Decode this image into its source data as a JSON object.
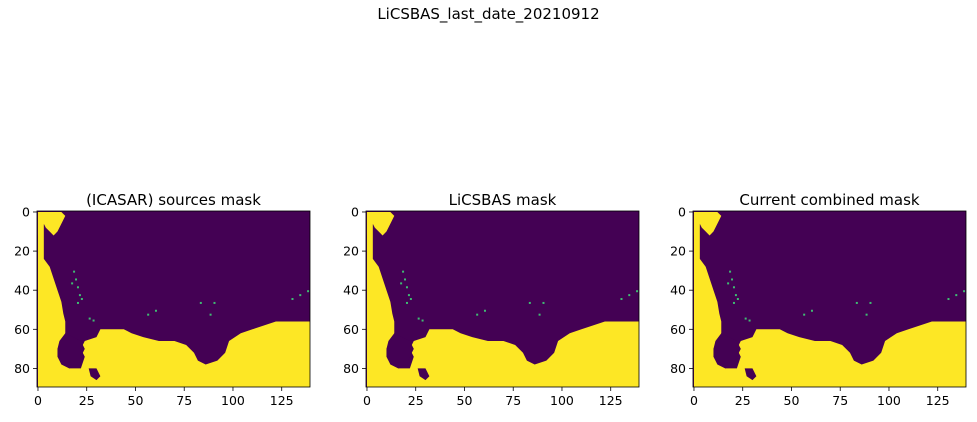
{
  "figure": {
    "suptitle": "LiCSBAS_last_date_20210912"
  },
  "colors": {
    "masked": "#440154",
    "unmasked": "#fde725",
    "speck": "#3fbc73",
    "axis": "#000000"
  },
  "chart_data": [
    {
      "type": "heatmap",
      "title": "(ICASAR) sources mask",
      "xlim": [
        -0.5,
        139.5
      ],
      "ylim": [
        89.5,
        -0.5
      ],
      "xticks": [
        0,
        25,
        50,
        75,
        100,
        125
      ],
      "yticks": [
        0,
        20,
        40,
        60,
        80
      ],
      "colormap": "viridis",
      "values": "binary mask (0 = dark purple, 1 = yellow)"
    },
    {
      "type": "heatmap",
      "title": "LiCSBAS mask",
      "xlim": [
        -0.5,
        139.5
      ],
      "ylim": [
        89.5,
        -0.5
      ],
      "xticks": [
        0,
        25,
        50,
        75,
        100,
        125
      ],
      "yticks": [
        0,
        20,
        40,
        60,
        80
      ],
      "colormap": "viridis",
      "values": "binary mask (0 = dark purple, 1 = yellow)"
    },
    {
      "type": "heatmap",
      "title": "Current combined mask",
      "xlim": [
        -0.5,
        139.5
      ],
      "ylim": [
        89.5,
        -0.5
      ],
      "xticks": [
        0,
        25,
        50,
        75,
        100,
        125
      ],
      "yticks": [
        0,
        20,
        40,
        60,
        80
      ],
      "colormap": "viridis",
      "values": "binary mask (0 = dark purple, 1 = yellow)"
    }
  ]
}
